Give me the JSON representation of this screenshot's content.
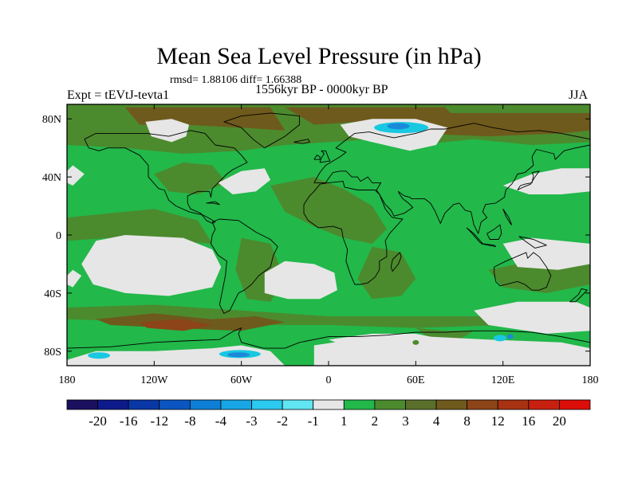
{
  "title": "Mean Sea Level Pressure (in hPa)",
  "stats": "rmsd= 1.88106 diff= 1.66388",
  "period": "1556kyr BP - 0000kyr BP",
  "experiment": "Expt = tEVtJ-tevta1",
  "season": "JJA",
  "map": {
    "projection": "cylindrical-equidistant",
    "lon_range": [
      -180,
      180
    ],
    "lat_range": [
      -90,
      90
    ],
    "x_ticks": [
      "180",
      "120W",
      "60W",
      "0",
      "60E",
      "120E",
      "180"
    ],
    "y_ticks": [
      "80N",
      "40N",
      "0",
      "40S",
      "80S"
    ]
  },
  "colorbar": {
    "labels": [
      "-20",
      "-16",
      "-12",
      "-8",
      "-4",
      "-3",
      "-2",
      "-1",
      "1",
      "2",
      "3",
      "4",
      "8",
      "12",
      "16",
      "20"
    ],
    "colors": [
      "#1b0f60",
      "#0c1a8a",
      "#0a37a6",
      "#0b55c2",
      "#0d7fd6",
      "#18a6e6",
      "#2cc9f0",
      "#5fe6f2",
      "#e6e6e6",
      "#22b84a",
      "#4c8a2e",
      "#5a6f2a",
      "#6e5a1c",
      "#8c4418",
      "#a83212",
      "#c8200e",
      "#dc0e0a"
    ]
  },
  "palette": {
    "neutral": "#e6e6e6",
    "green": "#22b84a",
    "olive": "#4c8a2e",
    "dark_olive": "#5a6f2a",
    "brown": "#6e5a1c",
    "rust": "#8c4418",
    "cyan": "#18c8e0",
    "blue": "#1a8ad8"
  }
}
